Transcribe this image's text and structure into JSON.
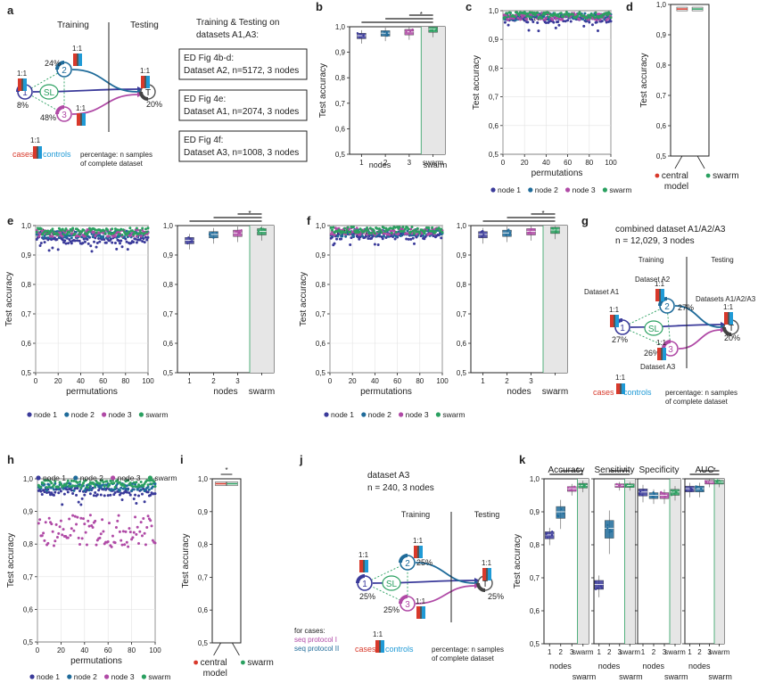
{
  "panel_letters": {
    "a": "a",
    "b": "b",
    "c": "c",
    "d": "d",
    "e": "e",
    "f": "f",
    "g": "g",
    "h": "h",
    "i": "i",
    "j": "j",
    "k": "k"
  },
  "common": {
    "test_accuracy": "Test accuracy",
    "permutations": "permutations",
    "nodes": "nodes",
    "swarm": "swarm",
    "central_model_line1": "central",
    "central_model_line2": "model",
    "cases": "cases",
    "controls": "controls",
    "ratio": "1:1",
    "training": "Training",
    "testing": "Testing",
    "sl": "SL",
    "t": "T",
    "star": "*",
    "pct_note_line1": "percentage: n samples",
    "pct_note_line2": "of complete dataset"
  },
  "panel_a": {
    "header": "Training & Testing on",
    "header2": "datasets A1,A3:",
    "boxes": [
      {
        "l1": "ED Fig 4b-d:",
        "l2": "Dataset A2, n=5172, 3 nodes"
      },
      {
        "l1": "ED Fig 4e:",
        "l2": "Dataset A1, n=2074, 3 nodes"
      },
      {
        "l1": "ED Fig 4f:",
        "l2": "Dataset A3, n=1008, 3 nodes"
      }
    ],
    "pct": {
      "n1": "8%",
      "n2": "24%",
      "n3": "48%",
      "t": "20%"
    },
    "node_labels": {
      "n1": "1",
      "n2": "2",
      "n3": "3"
    }
  },
  "panel_g": {
    "title1": "combined dataset A1/A2/A3",
    "title2": "n = 12,029, 3 nodes",
    "ds1": "Dataset A1",
    "ds2": "Dataset A2",
    "ds3": "Dataset A3",
    "dst": "Datasets A1/A2/A3",
    "pct": {
      "n1": "27%",
      "n2": "27%",
      "n3": "26%",
      "t": "20%"
    }
  },
  "panel_j": {
    "title1": "dataset A3",
    "title2": "n = 240, 3 nodes",
    "for_cases": "for cases:",
    "seq1": "seq protocol I",
    "seq2": "seq protocol II",
    "pct": {
      "n1": "25%",
      "n2": "25%",
      "n3": "25%",
      "t": "25%"
    }
  },
  "panel_k": {
    "titles": [
      "Accuracy",
      "Sensitivity",
      "Specificity",
      "AUC"
    ]
  },
  "legend": {
    "node1": "node 1",
    "node2": "node 2",
    "node3": "node 3",
    "swarm": "swarm"
  },
  "colors": {
    "node1": "#3a3a9a",
    "node2": "#1f6b9a",
    "node3": "#b04aa6",
    "swarm": "#2aa060",
    "cases": "#d8392b",
    "controls": "#1f9ad6",
    "grid": "#e3e3e3"
  },
  "chart_data": [
    {
      "panel": "b",
      "type": "box",
      "categories": [
        "1",
        "2",
        "3",
        "swarm"
      ],
      "y_ticks": [
        "0,5",
        "0,6",
        "0,7",
        "0,8",
        "0,9",
        "1,0"
      ],
      "ylim": [
        0.5,
        1.0
      ],
      "medians": [
        0.965,
        0.975,
        0.98,
        0.99
      ]
    },
    {
      "panel": "c",
      "type": "scatter",
      "label": "dataset A2",
      "x_ticks": [
        "0",
        "20",
        "40",
        "60",
        "80",
        "100"
      ],
      "y_ticks": [
        "0,5",
        "0,6",
        "0,7",
        "0,8",
        "0,9",
        "1,0"
      ],
      "ylim": [
        0.5,
        1.0
      ],
      "xlim": [
        0,
        100
      ],
      "series": [
        {
          "name": "node 1",
          "mean": 0.97
        },
        {
          "name": "node 2",
          "mean": 0.98
        },
        {
          "name": "node 3",
          "mean": 0.98
        },
        {
          "name": "swarm",
          "mean": 0.985
        }
      ]
    },
    {
      "panel": "d",
      "type": "box",
      "categories": [
        "central model",
        "swarm"
      ],
      "y_ticks": [
        "0,5",
        "0,6",
        "0,7",
        "0,8",
        "0,9",
        "1,0"
      ],
      "ylim": [
        0.5,
        1.0
      ],
      "medians": [
        0.985,
        0.985
      ]
    },
    {
      "panel": "e",
      "type": "scatter",
      "label": "dataset A1",
      "x_ticks": [
        "0",
        "20",
        "40",
        "60",
        "80",
        "100"
      ],
      "y_ticks": [
        "0,5",
        "0,6",
        "0,7",
        "0,8",
        "0,9",
        "1,0"
      ],
      "ylim": [
        0.5,
        1.0
      ],
      "xlim": [
        0,
        100
      ],
      "series": [
        {
          "name": "node 1",
          "mean": 0.95
        },
        {
          "name": "node 2",
          "mean": 0.97
        },
        {
          "name": "node 3",
          "mean": 0.975
        },
        {
          "name": "swarm",
          "mean": 0.98
        }
      ]
    },
    {
      "panel": "e2",
      "type": "box",
      "categories": [
        "1",
        "2",
        "3",
        "swarm"
      ],
      "y_ticks": [
        "0,5",
        "0,6",
        "0,7",
        "0,8",
        "0,9",
        "1,0"
      ],
      "ylim": [
        0.5,
        1.0
      ],
      "medians": [
        0.95,
        0.97,
        0.975,
        0.98
      ]
    },
    {
      "panel": "f",
      "type": "scatter",
      "label": "dataset A3",
      "x_ticks": [
        "0",
        "20",
        "40",
        "60",
        "80",
        "100"
      ],
      "y_ticks": [
        "0,5",
        "0,6",
        "0,7",
        "0,8",
        "0,9",
        "1,0"
      ],
      "ylim": [
        0.5,
        1.0
      ],
      "xlim": [
        0,
        100
      ],
      "series": [
        {
          "name": "node 1",
          "mean": 0.965
        },
        {
          "name": "node 2",
          "mean": 0.975
        },
        {
          "name": "node 3",
          "mean": 0.98
        },
        {
          "name": "swarm",
          "mean": 0.985
        }
      ]
    },
    {
      "panel": "f2",
      "type": "box",
      "categories": [
        "1",
        "2",
        "3",
        "swarm"
      ],
      "y_ticks": [
        "0,5",
        "0,6",
        "0,7",
        "0,8",
        "0,9",
        "1,0"
      ],
      "ylim": [
        0.5,
        1.0
      ],
      "medians": [
        0.97,
        0.975,
        0.98,
        0.985
      ]
    },
    {
      "panel": "h",
      "type": "scatter",
      "x_ticks": [
        "0",
        "20",
        "40",
        "60",
        "80",
        "100"
      ],
      "y_ticks": [
        "0,5",
        "0,6",
        "0,7",
        "0,8",
        "0,9",
        "1,0"
      ],
      "ylim": [
        0.5,
        1.0
      ],
      "xlim": [
        0,
        100
      ],
      "series": [
        {
          "name": "node 1",
          "mean": 0.96
        },
        {
          "name": "node 2",
          "mean": 0.975
        },
        {
          "name": "node 3",
          "mean": 0.84
        },
        {
          "name": "swarm",
          "mean": 0.985
        }
      ]
    },
    {
      "panel": "i",
      "type": "box",
      "categories": [
        "central model",
        "swarm"
      ],
      "y_ticks": [
        "0,5",
        "0,6",
        "0,7",
        "0,8",
        "0,9",
        "1,0"
      ],
      "ylim": [
        0.5,
        1.0
      ],
      "medians": [
        0.985,
        0.985
      ]
    },
    {
      "panel": "k",
      "type": "box",
      "groups": [
        "Accuracy",
        "Sensitivity",
        "Specificity",
        "AUC"
      ],
      "categories": [
        "1",
        "2",
        "3",
        "swarm"
      ],
      "y_ticks": [
        "0,5",
        "0,6",
        "0,7",
        "0,8",
        "0,9",
        "1,0"
      ],
      "ylim": [
        0.5,
        1.0
      ],
      "medians": [
        [
          0.83,
          0.9,
          0.97,
          0.98
        ],
        [
          0.68,
          0.85,
          0.98,
          0.98
        ],
        [
          0.96,
          0.95,
          0.95,
          0.96
        ],
        [
          0.97,
          0.97,
          0.99,
          0.99
        ]
      ]
    }
  ]
}
